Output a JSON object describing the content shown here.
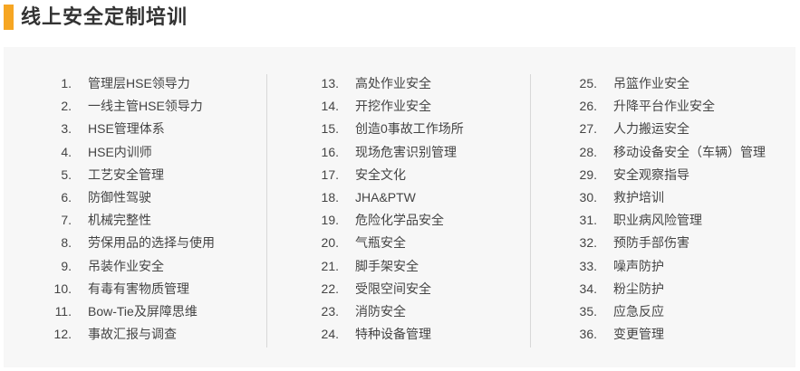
{
  "title": "线上安全定制培训",
  "accent_color": "#f6a623",
  "columns": [
    [
      {
        "num": "1.",
        "label": "管理层HSE领导力"
      },
      {
        "num": "2.",
        "label": "一线主管HSE领导力"
      },
      {
        "num": "3.",
        "label": "HSE管理体系"
      },
      {
        "num": "4.",
        "label": "HSE内训师"
      },
      {
        "num": "5.",
        "label": "工艺安全管理"
      },
      {
        "num": "6.",
        "label": "防御性驾驶"
      },
      {
        "num": "7.",
        "label": "机械完整性"
      },
      {
        "num": "8.",
        "label": "劳保用品的选择与使用"
      },
      {
        "num": "9.",
        "label": "吊装作业安全"
      },
      {
        "num": "10.",
        "label": "有毒有害物质管理"
      },
      {
        "num": "11.",
        "label": "Bow-Tie及屏障思维"
      },
      {
        "num": "12.",
        "label": "事故汇报与调查"
      }
    ],
    [
      {
        "num": "13.",
        "label": "高处作业安全"
      },
      {
        "num": "14.",
        "label": "开挖作业安全"
      },
      {
        "num": "15.",
        "label": "创造0事故工作场所"
      },
      {
        "num": "16.",
        "label": "现场危害识别管理"
      },
      {
        "num": "17.",
        "label": "安全文化"
      },
      {
        "num": "18.",
        "label": "JHA&PTW"
      },
      {
        "num": "19.",
        "label": "危险化学品安全"
      },
      {
        "num": "20.",
        "label": "气瓶安全"
      },
      {
        "num": "21.",
        "label": "脚手架安全"
      },
      {
        "num": "22.",
        "label": "受限空间安全"
      },
      {
        "num": "23.",
        "label": "消防安全"
      },
      {
        "num": "24.",
        "label": "特种设备管理"
      }
    ],
    [
      {
        "num": "25.",
        "label": "吊篮作业安全"
      },
      {
        "num": "26.",
        "label": "升降平台作业安全"
      },
      {
        "num": "27.",
        "label": "人力搬运安全"
      },
      {
        "num": "28.",
        "label": "移动设备安全（车辆）管理"
      },
      {
        "num": "29.",
        "label": "安全观察指导"
      },
      {
        "num": "30.",
        "label": "救护培训"
      },
      {
        "num": "31.",
        "label": "职业病风险管理"
      },
      {
        "num": "32.",
        "label": "预防手部伤害"
      },
      {
        "num": "33.",
        "label": "噪声防护"
      },
      {
        "num": "34.",
        "label": "粉尘防护"
      },
      {
        "num": "35.",
        "label": "应急反应"
      },
      {
        "num": "36.",
        "label": "变更管理"
      }
    ]
  ]
}
